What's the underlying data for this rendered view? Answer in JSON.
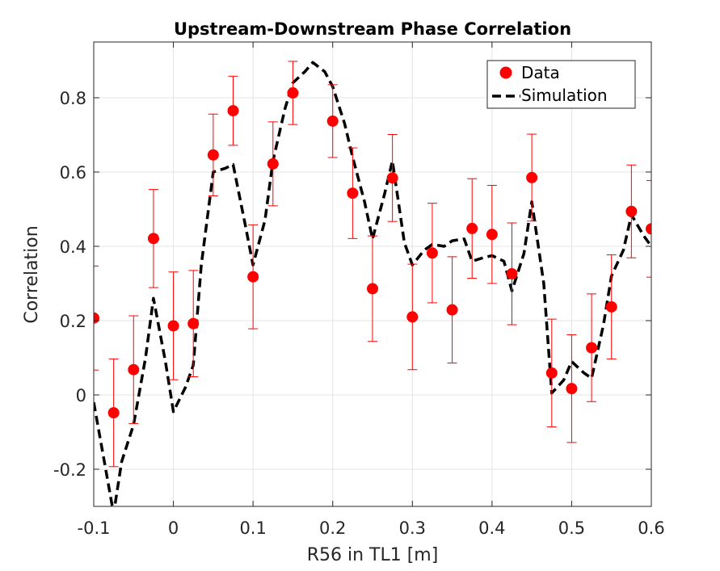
{
  "chart_data": {
    "type": "scatter",
    "title": "Upstream-Downstream Phase Correlation",
    "xlabel": "R56 in TL1 [m]",
    "ylabel": "Correlation",
    "xlim": [
      -0.1,
      0.6
    ],
    "ylim": [
      -0.3,
      0.95
    ],
    "xticks": [
      -0.1,
      0,
      0.1,
      0.2,
      0.3,
      0.4,
      0.5,
      0.6
    ],
    "xtick_labels": [
      "-0.1",
      "0",
      "0.1",
      "0.2",
      "0.3",
      "0.4",
      "0.5",
      "0.6"
    ],
    "yticks": [
      -0.2,
      0,
      0.2,
      0.4,
      0.6,
      0.8
    ],
    "ytick_labels": [
      "-0.2",
      "0",
      "0.2",
      "0.4",
      "0.6",
      "0.8"
    ],
    "grid": true,
    "legend_position": "top-right",
    "series": [
      {
        "name": "Data",
        "style": "markers-with-errorbars",
        "color": "#ff0000",
        "x": [
          -0.1,
          -0.075,
          -0.05,
          -0.025,
          0,
          0.025,
          0.05,
          0.075,
          0.1,
          0.125,
          0.15,
          0.175,
          0.2,
          0.225,
          0.25,
          0.275,
          0.3,
          0.325,
          0.35,
          0.375,
          0.4,
          0.425,
          0.45,
          0.475,
          0.5,
          0.525,
          0.55,
          0.575,
          0.6
        ],
        "y": [
          0.207,
          -0.048,
          0.068,
          0.421,
          0.186,
          0.192,
          0.646,
          0.765,
          0.318,
          0.622,
          0.813,
          null,
          0.737,
          0.543,
          0.286,
          0.584,
          0.21,
          0.382,
          0.229,
          0.448,
          0.432,
          0.326,
          0.585,
          0.059,
          0.017,
          0.127,
          0.237,
          0.494,
          0.447
        ],
        "err": [
          0.14,
          0.145,
          0.145,
          0.132,
          0.145,
          0.143,
          0.11,
          0.093,
          0.14,
          0.113,
          0.085,
          null,
          0.098,
          0.122,
          0.142,
          0.117,
          0.142,
          0.134,
          0.143,
          0.134,
          0.132,
          0.137,
          0.117,
          0.145,
          0.145,
          0.145,
          0.14,
          0.125,
          0.13
        ]
      },
      {
        "name": "Simulation",
        "style": "dashed-line",
        "color": "#000000",
        "x": [
          -0.1,
          -0.085,
          -0.075,
          -0.065,
          -0.05,
          -0.035,
          -0.025,
          -0.01,
          0,
          0.015,
          0.025,
          0.035,
          0.05,
          0.065,
          0.075,
          0.09,
          0.1,
          0.115,
          0.125,
          0.14,
          0.15,
          0.165,
          0.175,
          0.19,
          0.2,
          0.215,
          0.225,
          0.24,
          0.25,
          0.265,
          0.275,
          0.29,
          0.3,
          0.315,
          0.325,
          0.34,
          0.35,
          0.365,
          0.375,
          0.39,
          0.4,
          0.415,
          0.425,
          0.44,
          0.45,
          0.465,
          0.475,
          0.49,
          0.5,
          0.515,
          0.525,
          0.54,
          0.55,
          0.565,
          0.575,
          0.59,
          0.6
        ],
        "y": [
          -0.02,
          -0.2,
          -0.32,
          -0.18,
          -0.08,
          0.1,
          0.26,
          0.09,
          -0.045,
          0.02,
          0.08,
          0.35,
          0.6,
          0.61,
          0.62,
          0.46,
          0.35,
          0.47,
          0.63,
          0.77,
          0.84,
          0.87,
          0.895,
          0.87,
          0.83,
          0.73,
          0.64,
          0.52,
          0.42,
          0.54,
          0.63,
          0.41,
          0.35,
          0.39,
          0.405,
          0.4,
          0.415,
          0.42,
          0.36,
          0.37,
          0.375,
          0.36,
          0.28,
          0.38,
          0.52,
          0.3,
          0.005,
          0.04,
          0.09,
          0.06,
          0.045,
          0.19,
          0.32,
          0.39,
          0.485,
          0.43,
          0.4
        ]
      }
    ]
  }
}
